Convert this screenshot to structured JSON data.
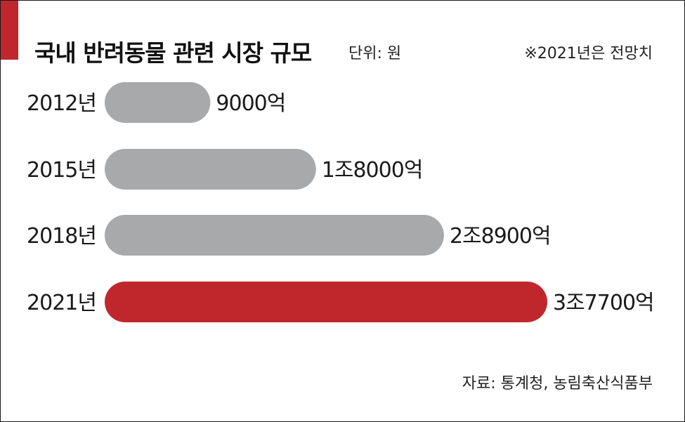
{
  "header": {
    "title": "국내 반려동물 관련 시장 규모",
    "unit": "단위: 원",
    "note": "※2021년은 전망치"
  },
  "footer": {
    "source": "자료: 통계청, 농림축산식품부"
  },
  "colors": {
    "accent": "#c0272d",
    "bar_default": "#a8a9ab",
    "bar_highlight": "#c0272d"
  },
  "chart_data": {
    "type": "bar",
    "orientation": "horizontal",
    "title": "국내 반려동물 관련 시장 규모",
    "unit": "단위: 원",
    "categories": [
      "2012년",
      "2015년",
      "2018년",
      "2021년"
    ],
    "values": [
      9000,
      18000,
      28900,
      37700
    ],
    "value_labels": [
      "9000억",
      "1조8000억",
      "2조8900억",
      "3조7700억"
    ],
    "value_unit": "억 원",
    "highlight": [
      false,
      false,
      false,
      true
    ],
    "xlim": [
      0,
      37700
    ],
    "grid": false,
    "legend": "none"
  }
}
